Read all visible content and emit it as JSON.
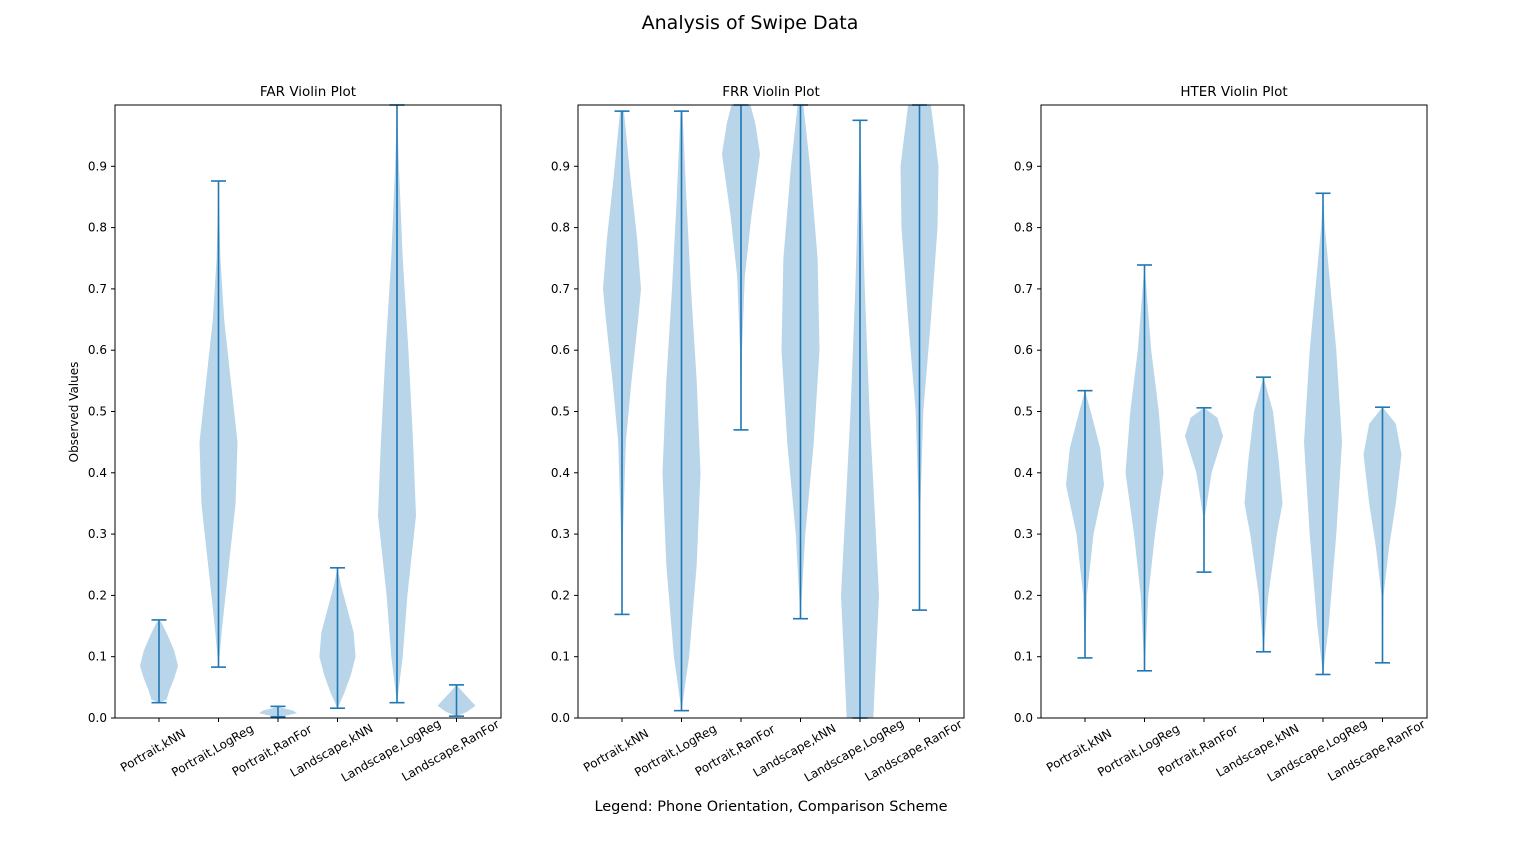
{
  "figure": {
    "title": "Analysis of Swipe Data",
    "ylabel": "Observed Values",
    "xlabel": "Legend: Phone Orientation, Comparison Scheme"
  },
  "colors": {
    "violin_fill": "#a6cbe3",
    "line": "#1f77b4",
    "axes": "#000000",
    "background": "#ffffff"
  },
  "chart_data": [
    {
      "type": "violin",
      "title": "FAR Violin Plot",
      "categories": [
        "Portrait,kNN",
        "Portrait,LogReg",
        "Portrait,RanFor",
        "Landscape,kNN",
        "Landscape,LogReg",
        "Landscape,RanFor"
      ],
      "ylim": [
        0,
        1.0
      ],
      "yticks": [
        "0.0",
        "0.1",
        "0.2",
        "0.3",
        "0.4",
        "0.5",
        "0.6",
        "0.7",
        "0.8",
        "0.9"
      ],
      "violins": [
        {
          "min": 0.025,
          "max": 0.16,
          "profile": [
            [
              0.025,
              0.0
            ],
            [
              0.03,
              0.4
            ],
            [
              0.045,
              0.55
            ],
            [
              0.065,
              0.8
            ],
            [
              0.085,
              1.0
            ],
            [
              0.11,
              0.8
            ],
            [
              0.135,
              0.45
            ],
            [
              0.155,
              0.15
            ],
            [
              0.16,
              0.0
            ]
          ]
        },
        {
          "min": 0.083,
          "max": 0.876,
          "profile": [
            [
              0.083,
              0.0
            ],
            [
              0.15,
              0.2
            ],
            [
              0.25,
              0.55
            ],
            [
              0.35,
              0.9
            ],
            [
              0.45,
              1.0
            ],
            [
              0.55,
              0.65
            ],
            [
              0.65,
              0.3
            ],
            [
              0.75,
              0.1
            ],
            [
              0.876,
              0.0
            ]
          ]
        },
        {
          "min": 0.002,
          "max": 0.019,
          "profile": [
            [
              0.002,
              0.0
            ],
            [
              0.004,
              0.45
            ],
            [
              0.008,
              1.0
            ],
            [
              0.012,
              0.8
            ],
            [
              0.016,
              0.3
            ],
            [
              0.019,
              0.0
            ]
          ]
        },
        {
          "min": 0.016,
          "max": 0.245,
          "profile": [
            [
              0.016,
              0.0
            ],
            [
              0.04,
              0.35
            ],
            [
              0.07,
              0.7
            ],
            [
              0.1,
              0.95
            ],
            [
              0.14,
              0.85
            ],
            [
              0.18,
              0.5
            ],
            [
              0.215,
              0.2
            ],
            [
              0.245,
              0.0
            ]
          ]
        },
        {
          "min": 0.025,
          "max": 1.0,
          "profile": [
            [
              0.025,
              0.0
            ],
            [
              0.1,
              0.3
            ],
            [
              0.2,
              0.55
            ],
            [
              0.33,
              1.0
            ],
            [
              0.45,
              0.85
            ],
            [
              0.6,
              0.6
            ],
            [
              0.75,
              0.3
            ],
            [
              0.9,
              0.1
            ],
            [
              1.0,
              0.0
            ]
          ]
        },
        {
          "min": 0.003,
          "max": 0.054,
          "profile": [
            [
              0.003,
              0.0
            ],
            [
              0.01,
              0.55
            ],
            [
              0.02,
              1.0
            ],
            [
              0.03,
              0.7
            ],
            [
              0.045,
              0.25
            ],
            [
              0.054,
              0.0
            ]
          ]
        }
      ]
    },
    {
      "type": "violin",
      "title": "FRR Violin Plot",
      "categories": [
        "Portrait,kNN",
        "Portrait,LogReg",
        "Portrait,RanFor",
        "Landscape,kNN",
        "Landscape,LogReg",
        "Landscape,RanFor"
      ],
      "ylim": [
        0,
        1.0
      ],
      "yticks": [
        "0.0",
        "0.1",
        "0.2",
        "0.3",
        "0.4",
        "0.5",
        "0.6",
        "0.7",
        "0.8",
        "0.9"
      ],
      "violins": [
        {
          "min": 0.169,
          "max": 0.99,
          "profile": [
            [
              0.169,
              0.0
            ],
            [
              0.3,
              0.05
            ],
            [
              0.45,
              0.2
            ],
            [
              0.55,
              0.5
            ],
            [
              0.65,
              0.85
            ],
            [
              0.7,
              1.0
            ],
            [
              0.78,
              0.8
            ],
            [
              0.88,
              0.45
            ],
            [
              0.99,
              0.1
            ]
          ]
        },
        {
          "min": 0.012,
          "max": 0.99,
          "profile": [
            [
              0.012,
              0.0
            ],
            [
              0.1,
              0.4
            ],
            [
              0.25,
              0.8
            ],
            [
              0.4,
              1.0
            ],
            [
              0.55,
              0.8
            ],
            [
              0.7,
              0.5
            ],
            [
              0.85,
              0.25
            ],
            [
              0.99,
              0.05
            ]
          ]
        },
        {
          "min": 0.47,
          "max": 1.0,
          "profile": [
            [
              0.47,
              0.0
            ],
            [
              0.6,
              0.05
            ],
            [
              0.72,
              0.2
            ],
            [
              0.82,
              0.55
            ],
            [
              0.92,
              1.0
            ],
            [
              0.97,
              0.75
            ],
            [
              1.0,
              0.5
            ]
          ]
        },
        {
          "min": 0.162,
          "max": 1.0,
          "profile": [
            [
              0.162,
              0.0
            ],
            [
              0.3,
              0.25
            ],
            [
              0.45,
              0.7
            ],
            [
              0.6,
              1.0
            ],
            [
              0.75,
              0.9
            ],
            [
              0.9,
              0.5
            ],
            [
              1.0,
              0.15
            ]
          ]
        },
        {
          "min": 0.0,
          "max": 0.975,
          "profile": [
            [
              0.0,
              0.7
            ],
            [
              0.1,
              0.85
            ],
            [
              0.2,
              1.0
            ],
            [
              0.35,
              0.75
            ],
            [
              0.5,
              0.5
            ],
            [
              0.7,
              0.25
            ],
            [
              0.85,
              0.1
            ],
            [
              0.975,
              0.0
            ]
          ]
        },
        {
          "min": 0.176,
          "max": 1.0,
          "profile": [
            [
              0.176,
              0.0
            ],
            [
              0.35,
              0.05
            ],
            [
              0.5,
              0.2
            ],
            [
              0.65,
              0.6
            ],
            [
              0.8,
              0.95
            ],
            [
              0.9,
              1.0
            ],
            [
              1.0,
              0.6
            ]
          ]
        }
      ]
    },
    {
      "type": "violin",
      "title": "HTER Violin Plot",
      "categories": [
        "Portrait,kNN",
        "Portrait,LogReg",
        "Portrait,RanFor",
        "Landscape,kNN",
        "Landscape,LogReg",
        "Landscape,RanFor"
      ],
      "ylim": [
        0,
        1.0
      ],
      "yticks": [
        "0.0",
        "0.1",
        "0.2",
        "0.3",
        "0.4",
        "0.5",
        "0.6",
        "0.7",
        "0.8",
        "0.9"
      ],
      "violins": [
        {
          "min": 0.098,
          "max": 0.534,
          "profile": [
            [
              0.098,
              0.0
            ],
            [
              0.2,
              0.1
            ],
            [
              0.3,
              0.45
            ],
            [
              0.38,
              1.0
            ],
            [
              0.44,
              0.8
            ],
            [
              0.5,
              0.3
            ],
            [
              0.534,
              0.0
            ]
          ]
        },
        {
          "min": 0.077,
          "max": 0.739,
          "profile": [
            [
              0.077,
              0.0
            ],
            [
              0.2,
              0.2
            ],
            [
              0.3,
              0.55
            ],
            [
              0.4,
              1.0
            ],
            [
              0.5,
              0.75
            ],
            [
              0.6,
              0.35
            ],
            [
              0.7,
              0.1
            ],
            [
              0.739,
              0.0
            ]
          ]
        },
        {
          "min": 0.238,
          "max": 0.506,
          "profile": [
            [
              0.238,
              0.0
            ],
            [
              0.33,
              0.05
            ],
            [
              0.4,
              0.4
            ],
            [
              0.46,
              1.0
            ],
            [
              0.49,
              0.7
            ],
            [
              0.506,
              0.0
            ]
          ]
        },
        {
          "min": 0.108,
          "max": 0.556,
          "profile": [
            [
              0.108,
              0.0
            ],
            [
              0.2,
              0.25
            ],
            [
              0.3,
              0.7
            ],
            [
              0.35,
              1.0
            ],
            [
              0.42,
              0.8
            ],
            [
              0.5,
              0.5
            ],
            [
              0.556,
              0.0
            ]
          ]
        },
        {
          "min": 0.071,
          "max": 0.856,
          "profile": [
            [
              0.071,
              0.0
            ],
            [
              0.15,
              0.3
            ],
            [
              0.3,
              0.7
            ],
            [
              0.45,
              1.0
            ],
            [
              0.6,
              0.7
            ],
            [
              0.7,
              0.4
            ],
            [
              0.8,
              0.1
            ],
            [
              0.856,
              0.0
            ]
          ]
        },
        {
          "min": 0.09,
          "max": 0.507,
          "profile": [
            [
              0.09,
              0.0
            ],
            [
              0.2,
              0.05
            ],
            [
              0.28,
              0.35
            ],
            [
              0.35,
              0.7
            ],
            [
              0.43,
              1.0
            ],
            [
              0.48,
              0.7
            ],
            [
              0.507,
              0.0
            ]
          ]
        }
      ]
    }
  ]
}
